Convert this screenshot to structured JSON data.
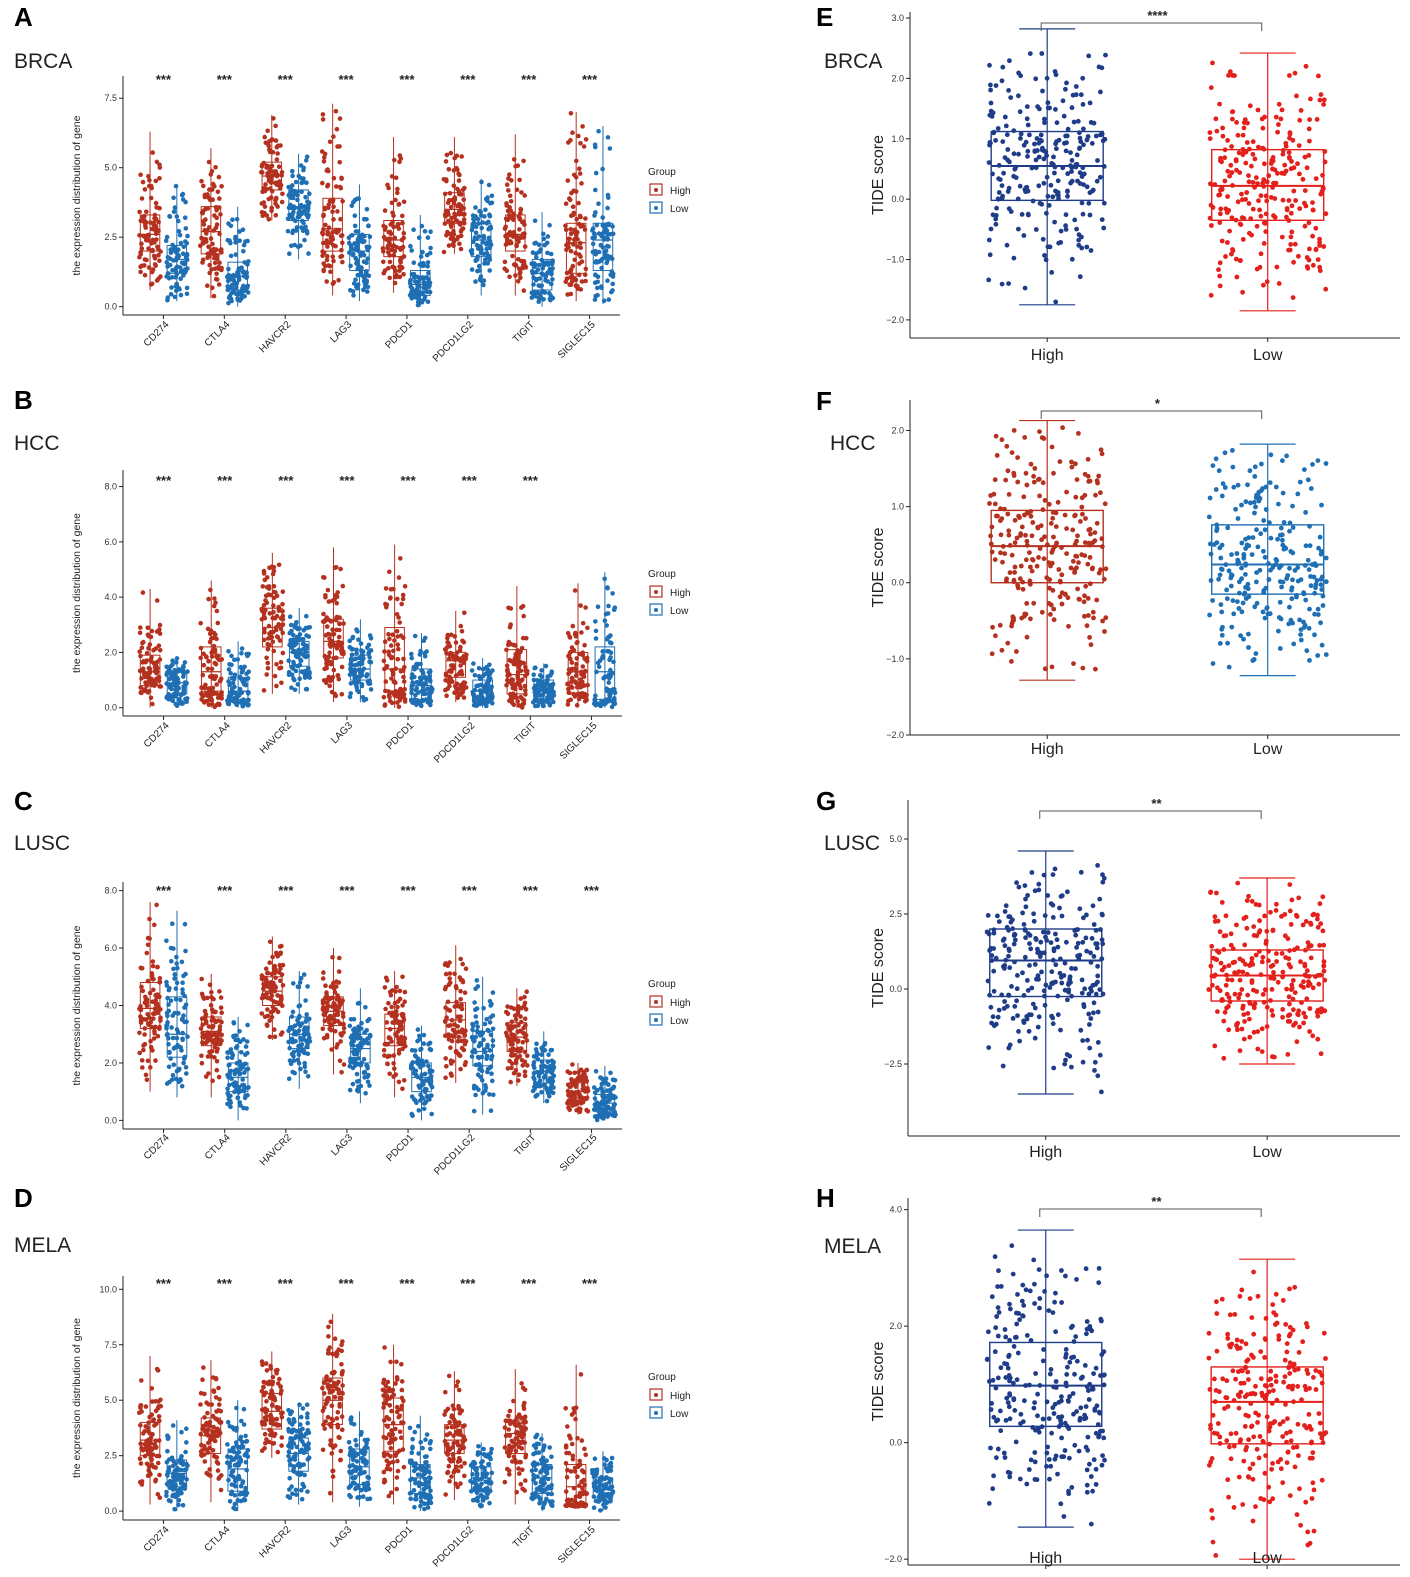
{
  "colors": {
    "high_left": "#b5311f",
    "low_left": "#1f6fb4",
    "navy": "#1f3c88",
    "red": "#e3201b",
    "axis": "#222222"
  },
  "chart_data": [
    {
      "id": "A",
      "type": "box",
      "panel_letter": "A",
      "cohort": "BRCA",
      "ylabel": "the expression distribution of gene",
      "ylim": [
        -0.3,
        8.3
      ],
      "yticks": [
        "0.0",
        "2.5",
        "5.0",
        "7.5"
      ],
      "ytick_values": [
        0,
        2.5,
        5,
        7.5
      ],
      "legend": {
        "title": "Group",
        "items": [
          "High",
          "Low"
        ]
      },
      "categories": [
        "CD274",
        "CTLA4",
        "HAVCR2",
        "LAG3",
        "PDCD1",
        "PDCD1LG2",
        "TIGIT",
        "SIGLEC15"
      ],
      "significance": [
        "***",
        "***",
        "***",
        "***",
        "***",
        "***",
        "***",
        "***"
      ],
      "series": [
        {
          "name": "High",
          "boxes": [
            [
              0.6,
              2.0,
              2.6,
              3.3,
              6.3
            ],
            [
              0.3,
              1.9,
              2.7,
              3.6,
              5.7
            ],
            [
              3.1,
              4.2,
              4.7,
              5.2,
              6.9
            ],
            [
              0.4,
              2.0,
              2.8,
              3.9,
              7.3
            ],
            [
              0.5,
              1.8,
              2.4,
              3.1,
              6.1
            ],
            [
              1.9,
              3.0,
              3.5,
              4.1,
              6.1
            ],
            [
              0.4,
              2.0,
              2.6,
              3.3,
              6.2
            ],
            [
              0.2,
              1.2,
              2.3,
              3.0,
              7.0
            ]
          ]
        },
        {
          "name": "Low",
          "boxes": [
            [
              0.2,
              1.2,
              1.7,
              2.2,
              4.4
            ],
            [
              0.0,
              0.6,
              1.1,
              1.6,
              3.6
            ],
            [
              1.7,
              3.1,
              3.6,
              4.2,
              5.5
            ],
            [
              0.2,
              1.3,
              2.0,
              2.6,
              4.4
            ],
            [
              0.0,
              0.4,
              0.8,
              1.3,
              3.3
            ],
            [
              0.4,
              1.8,
              2.4,
              3.0,
              4.6
            ],
            [
              0.0,
              0.6,
              1.2,
              1.7,
              3.4
            ],
            [
              0.1,
              1.3,
              2.4,
              3.0,
              6.5
            ]
          ]
        }
      ]
    },
    {
      "id": "B",
      "type": "box",
      "panel_letter": "B",
      "cohort": "HCC",
      "ylabel": "the expression distribution of gene",
      "ylim": [
        -0.3,
        8.6
      ],
      "yticks": [
        "0.0",
        "2.0",
        "4.0",
        "6.0",
        "8.0"
      ],
      "ytick_values": [
        0,
        2,
        4,
        6,
        8
      ],
      "legend": {
        "title": "Group",
        "items": [
          "High",
          "Low"
        ]
      },
      "categories": [
        "CD274",
        "CTLA4",
        "HAVCR2",
        "LAG3",
        "PDCD1",
        "PDCD1LG2",
        "TIGIT",
        "SIGLEC15"
      ],
      "significance": [
        "***",
        "***",
        "***",
        "***",
        "***",
        "***",
        "***",
        ""
      ],
      "series": [
        {
          "name": "High",
          "boxes": [
            [
              0.0,
              0.8,
              1.3,
              1.9,
              4.3
            ],
            [
              0.0,
              0.6,
              1.3,
              2.2,
              4.6
            ],
            [
              0.5,
              2.2,
              2.9,
              3.6,
              5.6
            ],
            [
              0.2,
              1.8,
              2.4,
              3.2,
              5.8
            ],
            [
              0.0,
              0.6,
              1.4,
              2.9,
              5.9
            ],
            [
              0.2,
              1.1,
              1.7,
              2.0,
              3.5
            ],
            [
              0.0,
              0.5,
              1.2,
              2.1,
              4.4
            ],
            [
              0.0,
              0.5,
              1.3,
              2.0,
              4.5
            ]
          ]
        },
        {
          "name": "Low",
          "boxes": [
            [
              0.0,
              0.5,
              0.9,
              1.3,
              1.8
            ],
            [
              0.0,
              0.3,
              0.6,
              1.1,
              2.4
            ],
            [
              0.5,
              1.5,
              2.0,
              2.4,
              3.6
            ],
            [
              0.2,
              1.0,
              1.4,
              1.9,
              3.2
            ],
            [
              0.0,
              0.3,
              0.8,
              1.4,
              2.7
            ],
            [
              0.0,
              0.3,
              0.6,
              1.0,
              1.8
            ],
            [
              0.0,
              0.3,
              0.6,
              1.0,
              1.6
            ],
            [
              0.0,
              0.3,
              1.3,
              2.2,
              4.9
            ]
          ]
        }
      ]
    },
    {
      "id": "C",
      "type": "box",
      "panel_letter": "C",
      "cohort": "LUSC",
      "ylabel": "the expression distribution of gene",
      "ylim": [
        -0.3,
        8.3
      ],
      "yticks": [
        "0.0",
        "2.0",
        "4.0",
        "6.0",
        "8.0"
      ],
      "ytick_values": [
        0,
        2,
        4,
        6,
        8
      ],
      "legend": {
        "title": "Group",
        "items": [
          "High",
          "Low"
        ]
      },
      "categories": [
        "CD274",
        "CTLA4",
        "HAVCR2",
        "LAG3",
        "PDCD1",
        "PDCD1LG2",
        "TIGIT",
        "SIGLEC15"
      ],
      "significance": [
        "***",
        "***",
        "***",
        "***",
        "***",
        "***",
        "***",
        "***"
      ],
      "series": [
        {
          "name": "High",
          "boxes": [
            [
              1.0,
              3.2,
              3.9,
              4.8,
              7.6
            ],
            [
              0.8,
              2.6,
              3.1,
              3.6,
              5.1
            ],
            [
              2.8,
              4.0,
              4.5,
              5.0,
              6.4
            ],
            [
              1.6,
              3.3,
              3.8,
              4.3,
              6.0
            ],
            [
              0.8,
              2.6,
              3.2,
              3.7,
              5.2
            ],
            [
              1.3,
              2.9,
              3.5,
              4.1,
              6.1
            ],
            [
              1.2,
              2.4,
              2.9,
              3.4,
              4.6
            ],
            [
              0.2,
              0.7,
              1.0,
              1.3,
              2.0
            ]
          ]
        },
        {
          "name": "Low",
          "boxes": [
            [
              0.8,
              2.2,
              3.0,
              4.3,
              7.3
            ],
            [
              0.0,
              1.0,
              1.5,
              2.0,
              3.6
            ],
            [
              1.1,
              2.5,
              3.0,
              3.6,
              5.2
            ],
            [
              0.6,
              2.0,
              2.5,
              3.0,
              4.6
            ],
            [
              0.0,
              1.0,
              1.5,
              2.0,
              3.3
            ],
            [
              0.2,
              1.9,
              2.4,
              3.1,
              5.0
            ],
            [
              0.6,
              1.3,
              1.7,
              2.1,
              3.1
            ],
            [
              0.0,
              0.3,
              0.6,
              0.9,
              1.9
            ]
          ]
        }
      ]
    },
    {
      "id": "D",
      "type": "box",
      "panel_letter": "D",
      "cohort": "MELA",
      "ylabel": "the expression distribution of gene",
      "ylim": [
        -0.4,
        10.6
      ],
      "yticks": [
        "0.0",
        "2.5",
        "5.0",
        "7.5",
        "10.0"
      ],
      "ytick_values": [
        0,
        2.5,
        5,
        7.5,
        10
      ],
      "legend": {
        "title": "Group",
        "items": [
          "High",
          "Low"
        ]
      },
      "categories": [
        "CD274",
        "CTLA4",
        "HAVCR2",
        "LAG3",
        "PDCD1",
        "PDCD1LG2",
        "TIGIT",
        "SIGLEC15"
      ],
      "significance": [
        "***",
        "***",
        "***",
        "***",
        "***",
        "***",
        "***",
        "***"
      ],
      "series": [
        {
          "name": "High",
          "boxes": [
            [
              0.3,
              2.5,
              3.2,
              4.0,
              7.0
            ],
            [
              0.4,
              2.6,
              3.4,
              4.2,
              6.8
            ],
            [
              2.4,
              3.7,
              4.5,
              5.3,
              7.2
            ],
            [
              0.4,
              3.9,
              5.0,
              6.0,
              8.9
            ],
            [
              0.3,
              2.7,
              3.9,
              5.1,
              7.5
            ],
            [
              0.5,
              2.6,
              3.2,
              3.9,
              6.3
            ],
            [
              0.3,
              2.6,
              3.5,
              4.1,
              6.4
            ],
            [
              0.2,
              0.3,
              1.1,
              2.1,
              6.6
            ]
          ]
        },
        {
          "name": "Low",
          "boxes": [
            [
              0.0,
              1.1,
              1.7,
              2.3,
              4.1
            ],
            [
              0.0,
              0.9,
              1.9,
              2.8,
              5.0
            ],
            [
              0.3,
              1.8,
              2.6,
              3.3,
              4.9
            ],
            [
              0.2,
              1.2,
              2.0,
              2.8,
              4.5
            ],
            [
              0.0,
              0.8,
              1.5,
              2.1,
              4.3
            ],
            [
              0.2,
              1.0,
              1.5,
              2.0,
              3.1
            ],
            [
              0.0,
              0.8,
              1.5,
              2.1,
              3.5
            ],
            [
              0.0,
              0.6,
              1.0,
              1.5,
              2.7
            ]
          ]
        }
      ]
    },
    {
      "id": "E",
      "type": "box",
      "panel_letter": "E",
      "cohort": "BRCA",
      "ylabel": "TIDE score",
      "ylim": [
        -2.3,
        3.1
      ],
      "yticks": [
        "3.0",
        "2.0",
        "1.0",
        "0.0",
        "−1.0",
        "−2.0"
      ],
      "ytick_values": [
        3,
        2,
        1,
        0,
        -1,
        -2
      ],
      "categories": [
        "High",
        "Low"
      ],
      "significance": "****",
      "series": [
        {
          "name": "High",
          "box": [
            -1.75,
            -0.02,
            0.55,
            1.12,
            2.82
          ]
        },
        {
          "name": "Low",
          "box": [
            -1.85,
            -0.35,
            0.22,
            0.82,
            2.42
          ]
        }
      ]
    },
    {
      "id": "F",
      "type": "box",
      "panel_letter": "F",
      "cohort": "HCC",
      "ylabel": "TIDE score",
      "ylim": [
        -2.0,
        2.4
      ],
      "yticks": [
        "2.0",
        "1.0",
        "0.0",
        "−1.0",
        "−2.0"
      ],
      "ytick_values": [
        2,
        1,
        0,
        -1,
        -2
      ],
      "categories": [
        "High",
        "Low"
      ],
      "significance": "*",
      "series": [
        {
          "name": "High",
          "box": [
            -1.28,
            0.0,
            0.48,
            0.95,
            2.13
          ]
        },
        {
          "name": "Low",
          "box": [
            -1.22,
            -0.15,
            0.24,
            0.76,
            1.82
          ]
        }
      ]
    },
    {
      "id": "G",
      "type": "box",
      "panel_letter": "G",
      "cohort": "LUSC",
      "ylabel": "TIDE score",
      "ylim": [
        -4.9,
        6.3
      ],
      "yticks": [
        "5.0",
        "2.5",
        "0.0",
        "−2.5"
      ],
      "ytick_values": [
        5,
        2.5,
        0,
        -2.5
      ],
      "categories": [
        "High",
        "Low"
      ],
      "significance": "**",
      "series": [
        {
          "name": "High",
          "box": [
            -3.5,
            -0.25,
            0.95,
            2.0,
            4.6
          ]
        },
        {
          "name": "Low",
          "box": [
            -2.5,
            -0.4,
            0.45,
            1.3,
            3.7
          ]
        }
      ]
    },
    {
      "id": "H",
      "type": "box",
      "panel_letter": "H",
      "cohort": "MELA",
      "ylabel": "TIDE score",
      "ylim": [
        -2.1,
        4.2
      ],
      "yticks": [
        "4.0",
        "2.0",
        "0.0",
        "−2.0"
      ],
      "ytick_values": [
        4,
        2,
        0,
        -2
      ],
      "categories": [
        "High",
        "Low"
      ],
      "significance": "**",
      "series": [
        {
          "name": "High",
          "box": [
            -1.45,
            0.28,
            0.98,
            1.72,
            3.65
          ]
        },
        {
          "name": "Low",
          "box": [
            -2.0,
            -0.02,
            0.7,
            1.3,
            3.15
          ]
        }
      ]
    }
  ]
}
